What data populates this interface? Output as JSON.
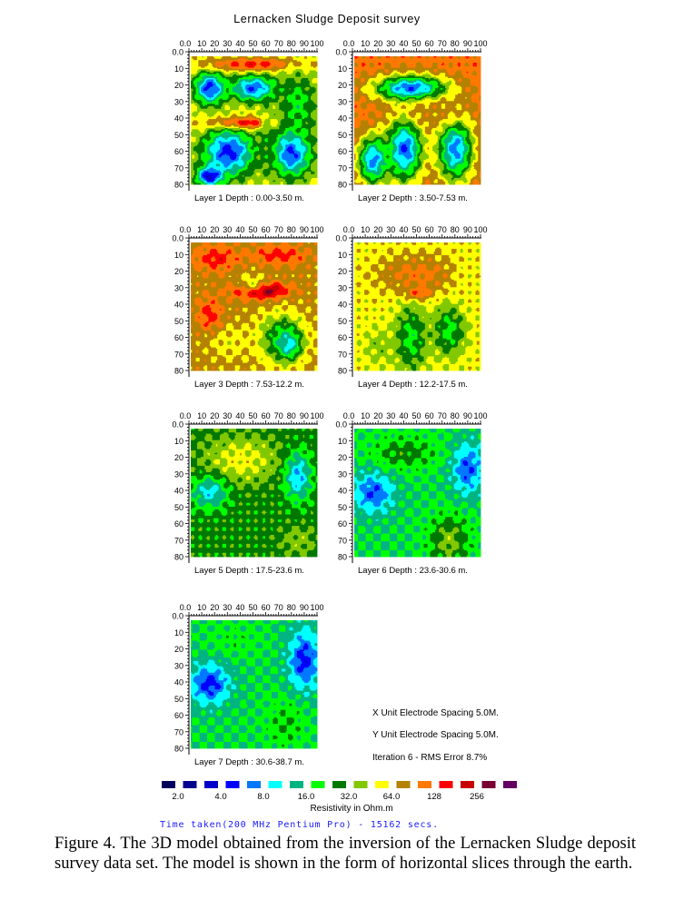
{
  "figure": {
    "title": "Lernacken Sludge Deposit survey",
    "caption": "Figure 4. The 3D model obtained from the inversion of the Lernacken Sludge deposit survey data set. The model is shown in the form of horizontal slices through the earth.",
    "time_taken": "Time taken(200 MHz Pentium Pro) - 15162 secs."
  },
  "info": {
    "x_spacing": "X Unit Electrode Spacing 5.0M.",
    "y_spacing": "Y Unit Electrode Spacing 5.0M.",
    "iteration": "Iteration 6 - RMS Error 8.7%"
  },
  "colors": {
    "palette": [
      "#00005a",
      "#00008c",
      "#0000c8",
      "#0000ff",
      "#0078ff",
      "#00ffff",
      "#00b482",
      "#00ff00",
      "#007800",
      "#82c800",
      "#ffff00",
      "#b48200",
      "#ff7800",
      "#ff0000",
      "#c80000",
      "#780032",
      "#640064"
    ],
    "bg": "#ffffff",
    "axis": "#000000"
  },
  "chart_data": {
    "type": "heatmap",
    "x_axis": {
      "min": 0,
      "max": 100,
      "tick_labels": [
        "0.0",
        "10",
        "20",
        "30",
        "40",
        "50",
        "60",
        "70",
        "80",
        "90",
        "100"
      ]
    },
    "y_axis": {
      "min": 0,
      "max": 80,
      "tick_labels": [
        "0.0",
        "10",
        "20",
        "30",
        "40",
        "50",
        "60",
        "70",
        "80"
      ]
    },
    "layers": [
      {
        "label": "Layer 1 Depth : 0.00-3.50 m.",
        "base": 10,
        "blobs": [
          [
            15,
            20,
            12,
            10,
            3
          ],
          [
            50,
            20,
            18,
            8,
            3.5
          ],
          [
            40,
            42,
            25,
            4,
            15
          ],
          [
            30,
            60,
            20,
            15,
            3
          ],
          [
            80,
            60,
            15,
            15,
            3
          ],
          [
            50,
            5,
            40,
            4,
            13
          ],
          [
            85,
            30,
            15,
            20,
            7
          ],
          [
            15,
            75,
            10,
            6,
            2
          ],
          [
            60,
            55,
            6,
            20,
            8
          ]
        ]
      },
      {
        "label": "Layer 2 Depth : 3.50-7.53 m.",
        "base": 12,
        "blobs": [
          [
            45,
            20,
            28,
            8,
            3.5
          ],
          [
            40,
            58,
            14,
            20,
            3.5
          ],
          [
            80,
            58,
            14,
            20,
            4
          ],
          [
            15,
            65,
            12,
            15,
            4
          ],
          [
            65,
            35,
            25,
            8,
            11
          ]
        ]
      },
      {
        "label": "Layer 3 Depth : 7.53-12.2 m.",
        "base": 11,
        "blobs": [
          [
            55,
            30,
            20,
            5,
            16
          ],
          [
            20,
            10,
            18,
            8,
            13
          ],
          [
            70,
            8,
            22,
            6,
            13
          ],
          [
            72,
            60,
            18,
            15,
            7
          ],
          [
            78,
            64,
            8,
            8,
            5
          ],
          [
            30,
            62,
            18,
            12,
            10
          ],
          [
            15,
            45,
            10,
            10,
            13
          ],
          [
            48,
            25,
            12,
            7,
            10
          ]
        ]
      },
      {
        "label": "Layer 4 Depth : 12.2-17.5 m.",
        "base": 10,
        "blobs": [
          [
            50,
            20,
            30,
            12,
            12
          ],
          [
            50,
            32,
            10,
            4,
            13
          ],
          [
            45,
            60,
            12,
            20,
            7
          ],
          [
            75,
            55,
            12,
            15,
            7
          ],
          [
            20,
            65,
            12,
            12,
            9
          ],
          [
            90,
            20,
            10,
            15,
            10
          ]
        ]
      },
      {
        "label": "Layer 5 Depth : 17.5-23.6 m.",
        "base": 8,
        "blobs": [
          [
            40,
            20,
            30,
            15,
            10
          ],
          [
            85,
            30,
            10,
            15,
            4.5
          ],
          [
            15,
            40,
            14,
            10,
            5
          ],
          [
            55,
            60,
            10,
            20,
            8
          ],
          [
            85,
            70,
            15,
            10,
            9
          ]
        ]
      },
      {
        "label": "Layer 6 Depth : 23.6-30.6 m.",
        "base": 6.5,
        "blobs": [
          [
            15,
            40,
            15,
            12,
            3.5
          ],
          [
            90,
            25,
            12,
            15,
            3.5
          ],
          [
            40,
            15,
            25,
            10,
            8
          ],
          [
            75,
            70,
            15,
            15,
            9
          ]
        ]
      },
      {
        "label": "Layer 7 Depth : 30.6-38.7 m.",
        "base": 6.5,
        "blobs": [
          [
            15,
            40,
            15,
            12,
            3
          ],
          [
            90,
            25,
            12,
            18,
            3
          ],
          [
            35,
            12,
            20,
            10,
            7
          ],
          [
            75,
            65,
            15,
            15,
            7.5
          ]
        ]
      }
    ],
    "legend": {
      "title": "Resistivity in Ohm.m",
      "labels": [
        "2.0",
        "4.0",
        "8.0",
        "16.0",
        "32.0",
        "64.0",
        "128",
        "256"
      ]
    }
  }
}
